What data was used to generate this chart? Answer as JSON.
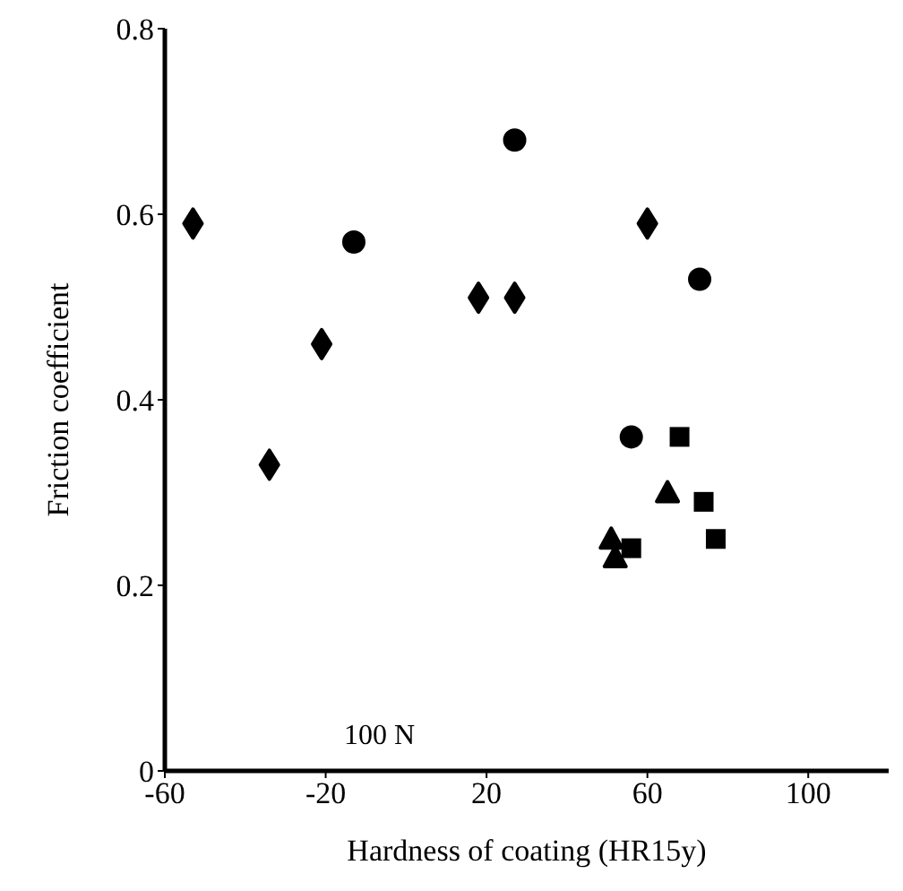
{
  "chart_data": {
    "type": "scatter",
    "xlabel": "Hardness of coating (HR15y)",
    "ylabel": "Friction coefficient",
    "xlim": [
      -60,
      120
    ],
    "xticks": [
      -60,
      -20,
      20,
      60,
      100
    ],
    "ylim": [
      0,
      0.8
    ],
    "yticks": [
      0,
      0.2,
      0.4,
      0.6,
      0.8
    ],
    "grid": false,
    "legend": false,
    "annotations": [
      "100 N"
    ],
    "series": [
      {
        "color": "#000000",
        "marker": "diamond",
        "x": [
          -53,
          -21,
          -34
        ],
        "values": [
          0.59,
          0.46,
          0.33
        ]
      },
      {
        "color": "#000000",
        "marker": "circle",
        "x": [
          -13,
          27
        ],
        "values": [
          0.57,
          0.68
        ]
      },
      {
        "color": "#000000",
        "marker": "diamond",
        "x": [
          18,
          27,
          60
        ],
        "values": [
          0.51,
          0.51,
          0.59
        ]
      },
      {
        "color": "#000000",
        "marker": "circle",
        "x": [
          73,
          56
        ],
        "values": [
          0.53,
          0.36
        ]
      },
      {
        "color": "#000000",
        "marker": "square",
        "x": [
          68,
          74,
          77
        ],
        "values": [
          0.36,
          0.29,
          0.25
        ]
      },
      {
        "color": "#000000",
        "marker": "triangle",
        "x": [
          65
        ],
        "values": [
          0.3
        ]
      },
      {
        "color": "#000000",
        "marker": "triangle",
        "x": [
          51,
          52
        ],
        "values": [
          0.25,
          0.23
        ]
      },
      {
        "color": "#000000",
        "marker": "square",
        "x": [
          56
        ],
        "values": [
          0.24
        ]
      }
    ]
  }
}
